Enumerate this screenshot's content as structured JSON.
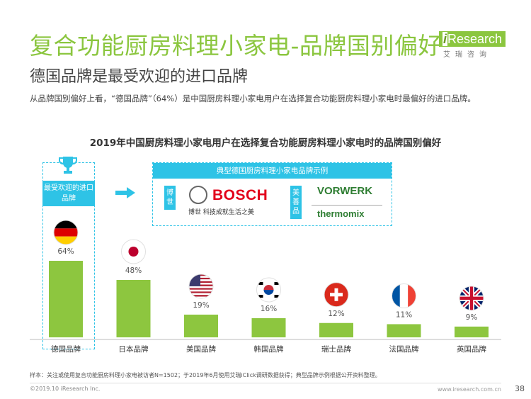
{
  "header": {
    "title": "复合功能厨房料理小家电-品牌国别偏好",
    "subtitle": "德国品牌是最受欢迎的进口品牌",
    "description": "从品牌国别偏好上看，“德国品牌”（64%）是中国厨房料理小家电用户在选择复合功能厨房料理小家电时最偏好的进口品牌。"
  },
  "logo": {
    "brand_i": "i",
    "brand_rest": "Research",
    "sub": "艾瑞咨询"
  },
  "callouts": {
    "favorite_label": "最受欢迎的进口品牌",
    "examples_title": "典型德国厨房料理小家电品牌示例",
    "bosch_tag": "博世",
    "bosch_name": "BOSCH",
    "bosch_sub": "博世  科技成就生活之美",
    "vorwerk_tag": "美善品",
    "vorwerk_name": "VORWERK",
    "thermomix_name": "thermomix"
  },
  "colors": {
    "bar": "#8dc63f",
    "accent": "#2ec3e6",
    "title": "#8bc63f"
  },
  "chart_data": {
    "type": "bar",
    "title": "2019年中国厨房料理小家电用户在选择复合功能厨房料理小家电时的品牌国别偏好",
    "categories": [
      "德国品牌",
      "日本品牌",
      "美国品牌",
      "韩国品牌",
      "瑞士品牌",
      "法国品牌",
      "英国品牌"
    ],
    "values": [
      64,
      48,
      19,
      16,
      12,
      11,
      9
    ],
    "value_labels": [
      "64%",
      "48%",
      "19%",
      "16%",
      "12%",
      "11%",
      "9%"
    ],
    "flags": [
      "germany-flag",
      "japan-flag",
      "usa-flag",
      "korea-flag",
      "switzerland-flag",
      "france-flag",
      "uk-flag"
    ],
    "ylim": [
      0,
      64
    ],
    "grid": false
  },
  "footer": {
    "note": "样本：关注或使用复合功能厨房料理小家电被访者N=1502；于2019年6月使用艾瑞iClick调研数据获得；典型品牌示例根据公开资料整理。",
    "copyright": "©2019.10 iResearch Inc.",
    "url": "www.iresearch.com.cn",
    "page": "38"
  }
}
